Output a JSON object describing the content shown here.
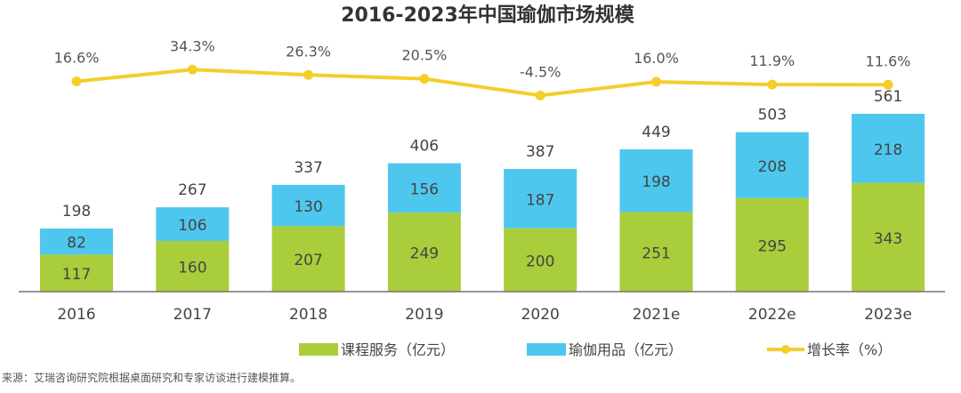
{
  "chart_data": {
    "type": "bar",
    "title": "2016-2023年中国瑜伽市场规模",
    "categories": [
      "2016",
      "2017",
      "2018",
      "2019",
      "2020",
      "2021e",
      "2022e",
      "2023e"
    ],
    "series": [
      {
        "name": "课程服务（亿元）",
        "type": "bar",
        "stacked": true,
        "color": "#A9CD3B",
        "values": [
          117,
          160,
          207,
          249,
          200,
          251,
          295,
          343
        ]
      },
      {
        "name": "瑜伽用品（亿元）",
        "type": "bar",
        "stacked": true,
        "color": "#4EC7EE",
        "values": [
          82,
          106,
          130,
          156,
          187,
          198,
          208,
          218
        ]
      },
      {
        "name": "增长率（%）",
        "type": "line",
        "color": "#F4CF2B",
        "values": [
          16.6,
          34.3,
          26.3,
          20.5,
          -4.5,
          16.0,
          11.9,
          11.6
        ],
        "labels": [
          "16.6%",
          "34.3%",
          "26.3%",
          "20.5%",
          "-4.5%",
          "16.0%",
          "11.9%",
          "11.6%"
        ]
      }
    ],
    "totals": [
      198,
      267,
      337,
      406,
      387,
      449,
      503,
      561
    ],
    "legend_position": "bottom",
    "grid": false
  },
  "source": "来源：艾瑞咨询研究院根据桌面研究和专家访谈进行建模推算。"
}
